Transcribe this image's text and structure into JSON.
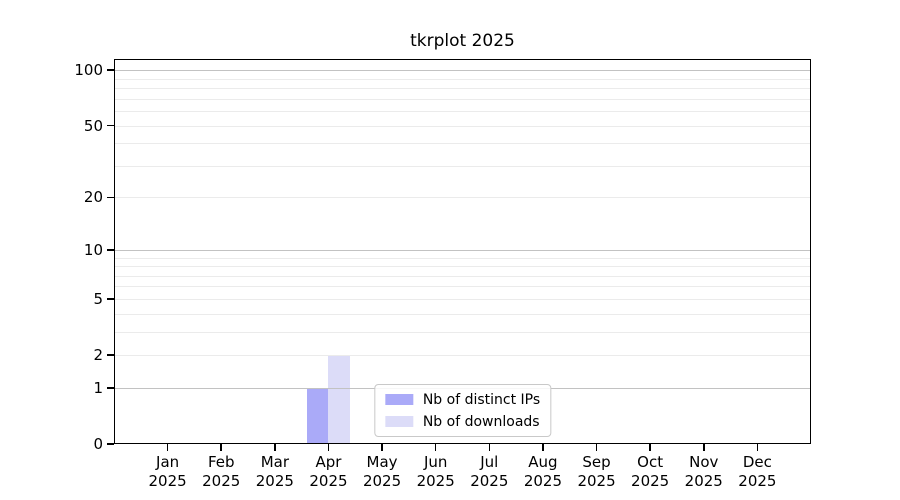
{
  "title": "tkrplot 2025",
  "colors": {
    "background": "#ffffff",
    "spine": "#000000",
    "grid_major": "#c2c2c2",
    "grid_minor": "#ebebeb",
    "legend_border": "#c9c9c9",
    "bar_distinct_ips": "#aaaaf8",
    "bar_downloads": "#dcdcf8"
  },
  "legend": {
    "items": [
      {
        "label": "Nb of distinct IPs",
        "color": "#aaaaf8"
      },
      {
        "label": "Nb of downloads",
        "color": "#dcdcf8"
      }
    ]
  },
  "chart_data": {
    "type": "bar",
    "title": "tkrplot 2025",
    "categories": [
      "Jan 2025",
      "Feb 2025",
      "Mar 2025",
      "Apr 2025",
      "May 2025",
      "Jun 2025",
      "Jul 2025",
      "Aug 2025",
      "Sep 2025",
      "Oct 2025",
      "Nov 2025",
      "Dec 2025"
    ],
    "series": [
      {
        "name": "Nb of distinct IPs",
        "color": "#aaaaf8",
        "values": [
          0,
          0,
          0,
          1,
          0,
          0,
          0,
          0,
          0,
          0,
          0,
          0
        ]
      },
      {
        "name": "Nb of downloads",
        "color": "#dcdcf8",
        "values": [
          0,
          0,
          0,
          2,
          0,
          0,
          0,
          0,
          0,
          0,
          0,
          0
        ]
      }
    ],
    "xlabel": "",
    "ylabel": "",
    "y_axis": {
      "scale": "log1p",
      "ticks": [
        0,
        1,
        2,
        5,
        10,
        20,
        50,
        100
      ],
      "major_gridlines": [
        1,
        10,
        100
      ],
      "minor_gridlines": [
        2,
        3,
        4,
        5,
        6,
        7,
        8,
        9,
        20,
        30,
        40,
        50,
        60,
        70,
        80,
        90
      ],
      "max": 115
    },
    "grid": true,
    "legend_position": "lower center"
  }
}
